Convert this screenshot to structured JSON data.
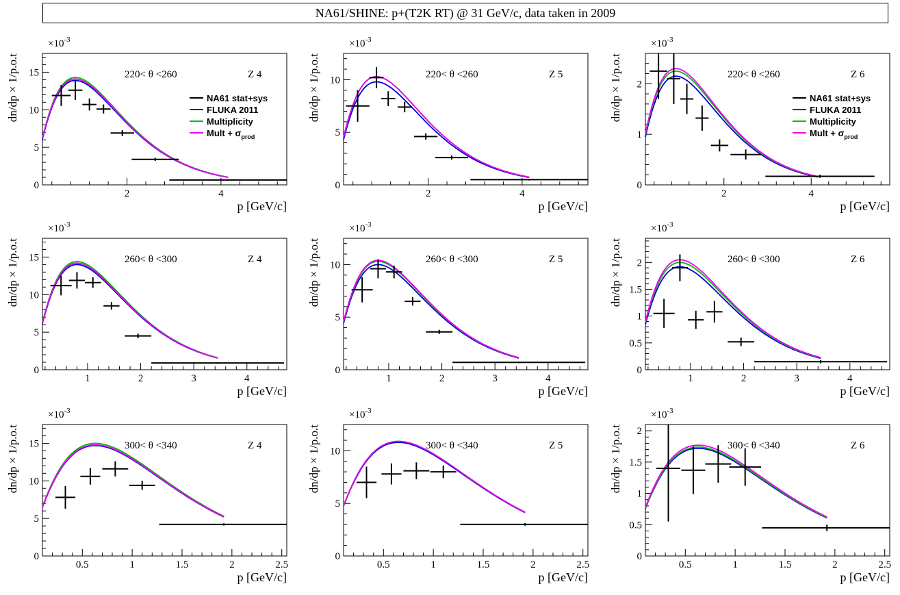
{
  "title": "NA61/SHINE:  p+(T2K RT) @ 31 GeV/c, data taken in 2009",
  "colors": {
    "data": "#000000",
    "fluka": "#0000dd",
    "mult": "#00bb00",
    "multprod": "#ee00ee"
  },
  "legend": {
    "entries": [
      {
        "key": "data",
        "label": "NA61 stat+sys"
      },
      {
        "key": "fluka",
        "label": "FLUKA 2011"
      },
      {
        "key": "mult",
        "label": "Multiplicity"
      },
      {
        "key": "multprod",
        "label": "Mult + σ",
        "sub": "prod"
      }
    ]
  },
  "chart_data": [
    {
      "type": "scatter",
      "angle_label": "220< θ <260",
      "z_label": "Z 4",
      "xlabel": "p [GeV/c]",
      "ylabel": "dn/dp × 1/p.o.t",
      "exponent_label": "×10",
      "exponent": "-3",
      "xlim": [
        0.2,
        5.4
      ],
      "xticks": [
        2,
        4
      ],
      "ylim": [
        0,
        17.5
      ],
      "yticks": [
        0,
        5,
        10,
        15
      ],
      "yticklabels": [
        "0",
        "5",
        "10",
        "15"
      ],
      "legend": true,
      "data": [
        {
          "x": 0.6,
          "xerr": 0.2,
          "y": 11.9,
          "yerr": 1.4
        },
        {
          "x": 0.9,
          "xerr": 0.15,
          "y": 12.6,
          "yerr": 1.3
        },
        {
          "x": 1.2,
          "xerr": 0.15,
          "y": 10.7,
          "yerr": 0.8
        },
        {
          "x": 1.5,
          "xerr": 0.15,
          "y": 10.1,
          "yerr": 0.6
        },
        {
          "x": 1.9,
          "xerr": 0.25,
          "y": 6.9,
          "yerr": 0.4
        },
        {
          "x": 2.6,
          "xerr": 0.5,
          "y": 3.4,
          "yerr": 0.2
        },
        {
          "x": 4.15,
          "xerr": 1.25,
          "y": 0.65,
          "yerr": 0.1
        }
      ],
      "model": {
        "p0": 0.9,
        "xmin": 0.2,
        "xmax": 4.15,
        "amp": {
          "fluka": 13.9,
          "mult": 14.3,
          "multprod": 14.1
        }
      }
    },
    {
      "type": "scatter",
      "angle_label": "220< θ <260",
      "z_label": "Z 5",
      "xlabel": "p [GeV/c]",
      "ylabel": "dn/dp × 1/p.o.t",
      "exponent_label": "×10",
      "exponent": "-3",
      "xlim": [
        0.2,
        5.4
      ],
      "xticks": [
        2,
        4
      ],
      "ylim": [
        0,
        12.5
      ],
      "yticks": [
        0,
        5,
        10
      ],
      "yticklabels": [
        "0",
        "5",
        "10"
      ],
      "legend": false,
      "data": [
        {
          "x": 0.5,
          "xerr": 0.25,
          "y": 7.5,
          "yerr": 1.5
        },
        {
          "x": 0.9,
          "xerr": 0.15,
          "y": 10.2,
          "yerr": 1.0
        },
        {
          "x": 1.15,
          "xerr": 0.15,
          "y": 8.2,
          "yerr": 0.7
        },
        {
          "x": 1.5,
          "xerr": 0.15,
          "y": 7.4,
          "yerr": 0.5
        },
        {
          "x": 1.95,
          "xerr": 0.25,
          "y": 4.6,
          "yerr": 0.3
        },
        {
          "x": 2.5,
          "xerr": 0.35,
          "y": 2.6,
          "yerr": 0.2
        },
        {
          "x": 4.15,
          "xerr": 1.25,
          "y": 0.5,
          "yerr": 0.08
        }
      ],
      "model": {
        "p0": 0.9,
        "xmin": 0.2,
        "xmax": 4.15,
        "amp": {
          "fluka": 9.8,
          "mult": 10.3,
          "multprod": 10.3
        }
      }
    },
    {
      "type": "scatter",
      "angle_label": "220< θ <260",
      "z_label": "Z 6",
      "xlabel": "p [GeV/c]",
      "ylabel": "dn/dp × 1/p.o.t",
      "exponent_label": "×10",
      "exponent": "-3",
      "xlim": [
        0.2,
        5.8
      ],
      "xticks": [
        2,
        4
      ],
      "ylim": [
        0,
        2.6
      ],
      "yticks": [
        0,
        1,
        2
      ],
      "yticklabels": [
        "0",
        "1",
        "2"
      ],
      "legend": true,
      "data": [
        {
          "x": 0.5,
          "xerr": 0.2,
          "y": 2.25,
          "yerr": 0.55
        },
        {
          "x": 0.85,
          "xerr": 0.15,
          "y": 2.1,
          "yerr": 0.5
        },
        {
          "x": 1.15,
          "xerr": 0.15,
          "y": 1.7,
          "yerr": 0.3
        },
        {
          "x": 1.5,
          "xerr": 0.15,
          "y": 1.32,
          "yerr": 0.25
        },
        {
          "x": 1.9,
          "xerr": 0.2,
          "y": 0.78,
          "yerr": 0.12
        },
        {
          "x": 2.5,
          "xerr": 0.35,
          "y": 0.6,
          "yerr": 0.1
        },
        {
          "x": 4.2,
          "xerr": 1.25,
          "y": 0.17,
          "yerr": 0.03
        }
      ],
      "model": {
        "p0": 0.9,
        "xmin": 0.2,
        "xmax": 4.15,
        "amp": {
          "fluka": 2.15,
          "mult": 2.25,
          "multprod": 2.3
        }
      }
    },
    {
      "type": "scatter",
      "angle_label": "260< θ <300",
      "z_label": "Z 4",
      "xlabel": "p [GeV/c]",
      "ylabel": "dn/dp × 1/p.o.t",
      "exponent_label": "×10",
      "exponent": "-3",
      "xlim": [
        0.15,
        4.75
      ],
      "xticks": [
        1,
        2,
        3,
        4
      ],
      "ylim": [
        0,
        17.5
      ],
      "yticks": [
        0,
        5,
        10,
        15
      ],
      "yticklabels": [
        "0",
        "5",
        "10",
        "15"
      ],
      "legend": false,
      "data": [
        {
          "x": 0.5,
          "xerr": 0.2,
          "y": 11.2,
          "yerr": 1.3
        },
        {
          "x": 0.8,
          "xerr": 0.15,
          "y": 11.9,
          "yerr": 1.1
        },
        {
          "x": 1.1,
          "xerr": 0.15,
          "y": 11.6,
          "yerr": 0.7
        },
        {
          "x": 1.45,
          "xerr": 0.15,
          "y": 8.5,
          "yerr": 0.5
        },
        {
          "x": 1.95,
          "xerr": 0.25,
          "y": 4.5,
          "yerr": 0.3
        },
        {
          "x": 3.45,
          "xerr": 1.25,
          "y": 0.9,
          "yerr": 0.1
        }
      ],
      "model": {
        "p0": 0.8,
        "xmin": 0.15,
        "xmax": 3.45,
        "amp": {
          "fluka": 14.0,
          "mult": 14.4,
          "multprod": 14.2
        }
      }
    },
    {
      "type": "scatter",
      "angle_label": "260< θ <300",
      "z_label": "Z 5",
      "xlabel": "p [GeV/c]",
      "ylabel": "dn/dp × 1/p.o.t",
      "exponent_label": "×10",
      "exponent": "-3",
      "xlim": [
        0.15,
        4.75
      ],
      "xticks": [
        1,
        2,
        3,
        4
      ],
      "ylim": [
        0,
        12.5
      ],
      "yticks": [
        0,
        5,
        10
      ],
      "yticklabels": [
        "0",
        "5",
        "10"
      ],
      "legend": false,
      "data": [
        {
          "x": 0.5,
          "xerr": 0.2,
          "y": 7.6,
          "yerr": 1.2
        },
        {
          "x": 0.8,
          "xerr": 0.15,
          "y": 9.6,
          "yerr": 0.9
        },
        {
          "x": 1.1,
          "xerr": 0.15,
          "y": 9.3,
          "yerr": 0.6
        },
        {
          "x": 1.45,
          "xerr": 0.15,
          "y": 6.5,
          "yerr": 0.4
        },
        {
          "x": 1.95,
          "xerr": 0.25,
          "y": 3.6,
          "yerr": 0.2
        },
        {
          "x": 3.45,
          "xerr": 1.25,
          "y": 0.7,
          "yerr": 0.08
        }
      ],
      "model": {
        "p0": 0.8,
        "xmin": 0.15,
        "xmax": 3.45,
        "amp": {
          "fluka": 10.0,
          "mult": 10.3,
          "multprod": 10.4
        }
      }
    },
    {
      "type": "scatter",
      "angle_label": "260< θ <300",
      "z_label": "Z 6",
      "xlabel": "p [GeV/c]",
      "ylabel": "dn/dp × 1/p.o.t",
      "exponent_label": "×10",
      "exponent": "-3",
      "xlim": [
        0.15,
        4.75
      ],
      "xticks": [
        1,
        2,
        3,
        4
      ],
      "ylim": [
        0,
        2.45
      ],
      "yticks": [
        0,
        0.5,
        1,
        1.5,
        2
      ],
      "yticklabels": [
        "0",
        "0.5",
        "1",
        "1.5",
        "2"
      ],
      "legend": false,
      "data": [
        {
          "x": 0.5,
          "xerr": 0.2,
          "y": 1.05,
          "yerr": 0.27
        },
        {
          "x": 0.8,
          "xerr": 0.15,
          "y": 1.9,
          "yerr": 0.25
        },
        {
          "x": 1.1,
          "xerr": 0.15,
          "y": 0.93,
          "yerr": 0.17
        },
        {
          "x": 1.45,
          "xerr": 0.15,
          "y": 1.08,
          "yerr": 0.2
        },
        {
          "x": 1.95,
          "xerr": 0.25,
          "y": 0.52,
          "yerr": 0.08
        },
        {
          "x": 3.45,
          "xerr": 1.25,
          "y": 0.15,
          "yerr": 0.03
        }
      ],
      "model": {
        "p0": 0.8,
        "xmin": 0.15,
        "xmax": 3.45,
        "amp": {
          "fluka": 1.92,
          "mult": 2.0,
          "multprod": 2.05
        }
      }
    },
    {
      "type": "scatter",
      "angle_label": "300< θ <340",
      "z_label": "Z 4",
      "xlabel": "p [GeV/c]",
      "ylabel": "dn/dp × 1/p.o.t",
      "exponent_label": "×10",
      "exponent": "-3",
      "xlim": [
        0.1,
        2.55
      ],
      "xticks": [
        0.5,
        1,
        1.5,
        2,
        2.5
      ],
      "ylim": [
        0,
        17.5
      ],
      "yticks": [
        0,
        5,
        10,
        15
      ],
      "yticklabels": [
        "0",
        "5",
        "10",
        "15"
      ],
      "legend": false,
      "data": [
        {
          "x": 0.33,
          "xerr": 0.1,
          "y": 7.8,
          "yerr": 1.5
        },
        {
          "x": 0.58,
          "xerr": 0.1,
          "y": 10.6,
          "yerr": 1.1
        },
        {
          "x": 0.83,
          "xerr": 0.13,
          "y": 11.6,
          "yerr": 1.0
        },
        {
          "x": 1.1,
          "xerr": 0.13,
          "y": 9.4,
          "yerr": 0.6
        },
        {
          "x": 1.92,
          "xerr": 0.65,
          "y": 4.2,
          "yerr": 0.15
        }
      ],
      "model": {
        "p0": 0.63,
        "xmin": 0.1,
        "xmax": 1.92,
        "amp": {
          "fluka": 14.7,
          "mult": 15.0,
          "multprod": 14.8
        }
      }
    },
    {
      "type": "scatter",
      "angle_label": "300< θ <340",
      "z_label": "Z 5",
      "xlabel": "p [GeV/c]",
      "ylabel": "dn/dp × 1/p.o.t",
      "exponent_label": "×10",
      "exponent": "-3",
      "xlim": [
        0.1,
        2.55
      ],
      "xticks": [
        0.5,
        1,
        1.5,
        2,
        2.5
      ],
      "ylim": [
        0,
        12.5
      ],
      "yticks": [
        0,
        5,
        10
      ],
      "yticklabels": [
        "0",
        "5",
        "10"
      ],
      "legend": false,
      "data": [
        {
          "x": 0.33,
          "xerr": 0.1,
          "y": 7.0,
          "yerr": 1.5
        },
        {
          "x": 0.58,
          "xerr": 0.1,
          "y": 7.8,
          "yerr": 1.0
        },
        {
          "x": 0.83,
          "xerr": 0.13,
          "y": 8.1,
          "yerr": 0.8
        },
        {
          "x": 1.1,
          "xerr": 0.13,
          "y": 8.0,
          "yerr": 0.6
        },
        {
          "x": 1.92,
          "xerr": 0.65,
          "y": 3.0,
          "yerr": 0.12
        }
      ],
      "model": {
        "p0": 0.65,
        "xmin": 0.1,
        "xmax": 1.92,
        "amp": {
          "fluka": 10.8,
          "mult": 10.9,
          "multprod": 10.9
        }
      }
    },
    {
      "type": "scatter",
      "angle_label": "300< θ <340",
      "z_label": "Z 6",
      "xlabel": "p [GeV/c]",
      "ylabel": "dn/dp × 1/p.o.t",
      "exponent_label": "×10",
      "exponent": "-3",
      "xlim": [
        0.1,
        2.55
      ],
      "xticks": [
        0.5,
        1,
        1.5,
        2,
        2.5
      ],
      "ylim": [
        0,
        2.1
      ],
      "yticks": [
        0,
        0.5,
        1,
        1.5,
        2
      ],
      "yticklabels": [
        "0",
        "0.5",
        "1",
        "1.5",
        "2"
      ],
      "legend": false,
      "data": [
        {
          "x": 0.33,
          "xerr": 0.12,
          "y": 1.4,
          "yerr": 0.85
        },
        {
          "x": 0.58,
          "xerr": 0.12,
          "y": 1.37,
          "yerr": 0.38
        },
        {
          "x": 0.83,
          "xerr": 0.13,
          "y": 1.47,
          "yerr": 0.3
        },
        {
          "x": 1.1,
          "xerr": 0.16,
          "y": 1.42,
          "yerr": 0.3
        },
        {
          "x": 1.92,
          "xerr": 0.65,
          "y": 0.45,
          "yerr": 0.05
        }
      ],
      "model": {
        "p0": 0.63,
        "xmin": 0.1,
        "xmax": 1.92,
        "amp": {
          "fluka": 1.72,
          "mult": 1.74,
          "multprod": 1.77
        }
      }
    }
  ]
}
